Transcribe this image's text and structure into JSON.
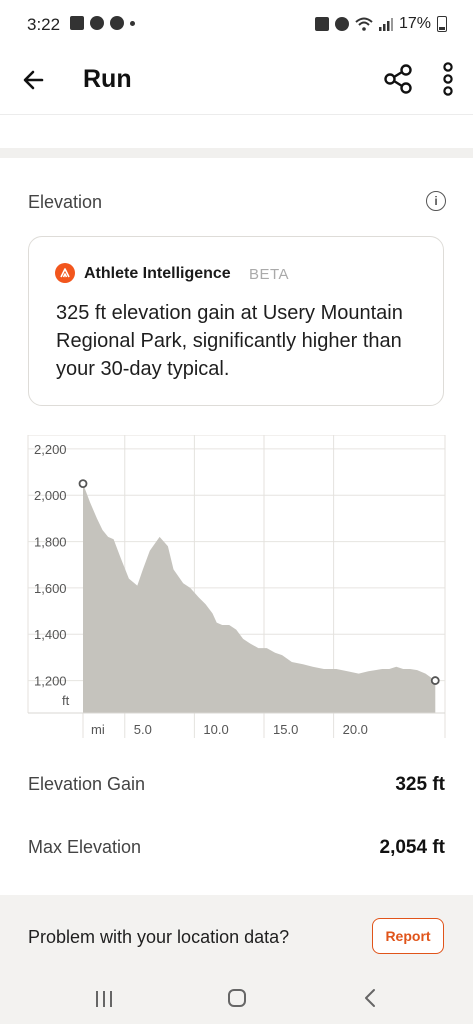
{
  "status_bar": {
    "time": "3:22",
    "battery": "17%",
    "left_icons": [
      "gallery-icon",
      "facebook-icon",
      "missed-call-icon",
      "dot-icon"
    ],
    "right_icons": [
      "nfc-icon",
      "alarm-icon",
      "wifi-icon",
      "signal-icon",
      "battery-icon"
    ]
  },
  "header": {
    "title": "Run",
    "back_icon": "back-arrow-icon",
    "share_icon": "share-icon",
    "more_icon": "more-vertical-icon"
  },
  "elevation": {
    "section_title": "Elevation",
    "info_label": "i"
  },
  "ai_card": {
    "name": "Athlete Intelligence",
    "badge": "BETA",
    "text": "325 ft elevation gain at Usery Mountain Regional Park, significantly higher than your 30-day typical.",
    "accent_color": "#f2561d"
  },
  "chart_data": {
    "type": "area",
    "y_ticks": [
      "2,200",
      "2,000",
      "1,800",
      "1,600",
      "1,400",
      "1,200"
    ],
    "y_unit": "ft",
    "x_ticks": [
      "5.0",
      "10.0",
      "15.0",
      "20.0"
    ],
    "x_unit": "mi",
    "xlim": [
      0,
      26
    ],
    "ylim": [
      1060,
      2260
    ],
    "fill_color": "#c5c3bd",
    "x": [
      0,
      0.5,
      1,
      1.4,
      1.8,
      2.2,
      2.7,
      3.3,
      3.9,
      4.3,
      4.8,
      5.5,
      6.1,
      6.5,
      7.2,
      7.7,
      8.3,
      8.8,
      9.3,
      9.6,
      10.0,
      10.5,
      11.0,
      11.5,
      12.0,
      12.6,
      13.2,
      13.8,
      14.3,
      15.0,
      15.8,
      16.5,
      17.3,
      18.2,
      19.0,
      19.8,
      20.5,
      21.0,
      21.5,
      22.0,
      22.5,
      23.0,
      23.5,
      24.0,
      24.6,
      25.3
    ],
    "y": [
      2050,
      1970,
      1900,
      1850,
      1820,
      1810,
      1730,
      1640,
      1610,
      1680,
      1760,
      1820,
      1780,
      1680,
      1620,
      1600,
      1560,
      1530,
      1490,
      1450,
      1440,
      1440,
      1420,
      1380,
      1360,
      1340,
      1340,
      1320,
      1310,
      1280,
      1270,
      1260,
      1250,
      1250,
      1240,
      1230,
      1240,
      1245,
      1250,
      1250,
      1260,
      1250,
      1250,
      1245,
      1230,
      1200
    ],
    "start_marker": true,
    "end_marker": true
  },
  "stats": [
    {
      "label": "Elevation Gain",
      "value": "325 ft"
    },
    {
      "label": "Max Elevation",
      "value": "2,054 ft"
    }
  ],
  "location_problem": {
    "text": "Problem with your location data?",
    "button_label": "Report",
    "accent_color": "#e0541a"
  },
  "nav_bar": {
    "icons": [
      "recents-icon",
      "home-icon",
      "back-icon"
    ]
  }
}
